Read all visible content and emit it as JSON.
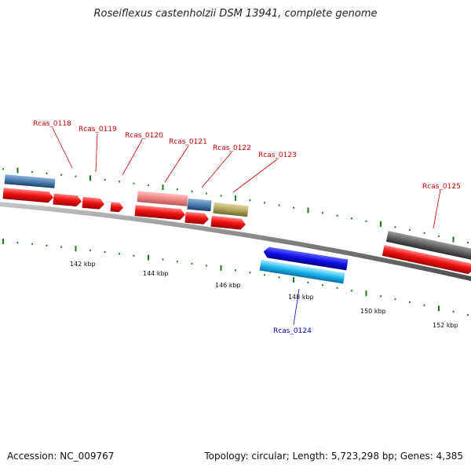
{
  "title": "Roseiflexus castenholzii DSM 13941, complete genome",
  "footer": {
    "accession": "Accession: NC_009767",
    "topology": "Topology: circular; Length: 5,723,298 bp; Genes: 4,385"
  },
  "colors": {
    "backbone": "#888888",
    "forward_gene": "#ee1111",
    "forward_label": "#cc0000",
    "reverse_label": "#0000cc",
    "tick": "#1a7a1a"
  },
  "loci": [
    {
      "id": "Rcas_0118",
      "strand": "forward"
    },
    {
      "id": "Rcas_0119",
      "strand": "forward"
    },
    {
      "id": "Rcas_0120",
      "strand": "forward"
    },
    {
      "id": "Rcas_0121",
      "strand": "forward"
    },
    {
      "id": "Rcas_0122",
      "strand": "forward"
    },
    {
      "id": "Rcas_0123",
      "strand": "forward"
    },
    {
      "id": "Rcas_0124",
      "strand": "reverse"
    },
    {
      "id": "Rcas_0125",
      "strand": "forward"
    }
  ],
  "ruler": [
    "142 kbp",
    "144 kbp",
    "146 kbp",
    "148 kbp",
    "150 kbp",
    "152 kbp"
  ]
}
